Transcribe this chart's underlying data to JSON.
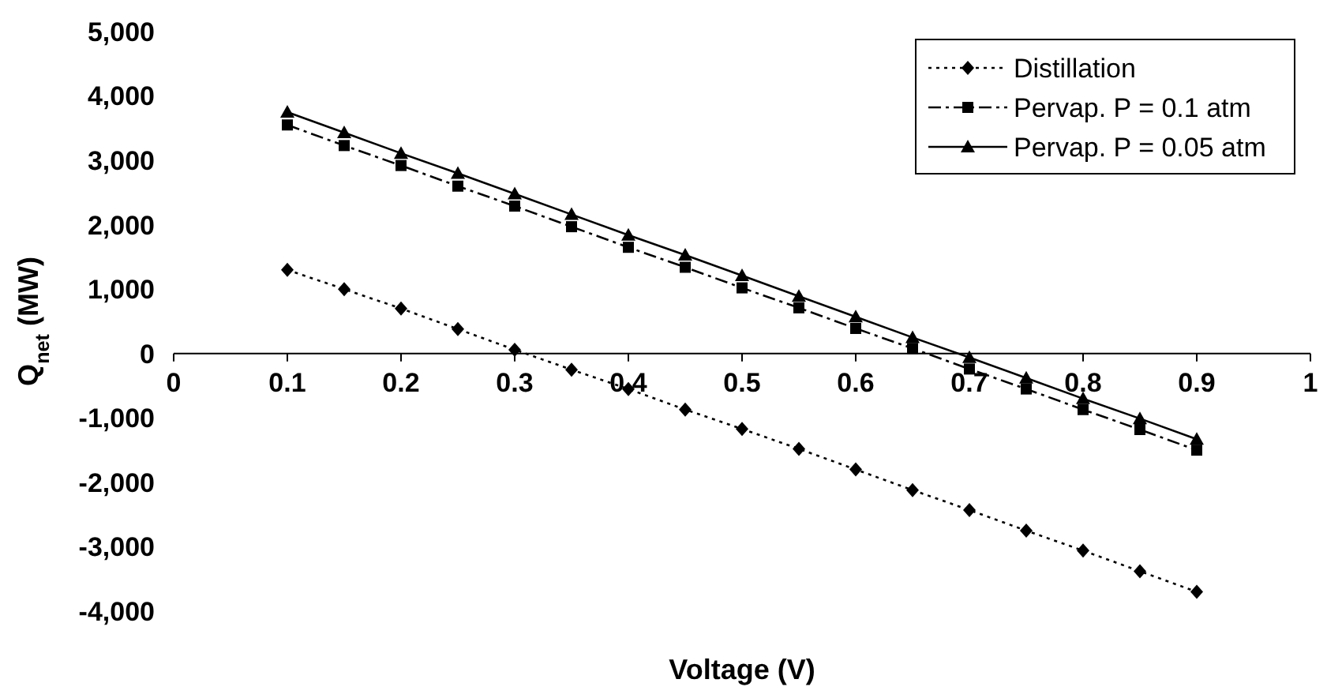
{
  "chart_data": {
    "type": "line",
    "xlabel": "Voltage (V)",
    "ylabel": "Q$_{net}$ (MW)",
    "xlim": [
      0,
      1
    ],
    "xticks": [
      0,
      0.1,
      0.2,
      0.3,
      0.4,
      0.5,
      0.6,
      0.7,
      0.8,
      0.9,
      1
    ],
    "ylim": [
      -4000,
      5000
    ],
    "yticks": [
      {
        "value": -4000,
        "label": "-4,000"
      },
      {
        "value": -3000,
        "label": "-3,000"
      },
      {
        "value": -2000,
        "label": "-2,000"
      },
      {
        "value": -1000,
        "label": "-1,000"
      },
      0,
      {
        "value": 1000,
        "label": "1,000"
      },
      {
        "value": 2000,
        "label": "2,000"
      },
      {
        "value": 3000,
        "label": "3,000"
      },
      {
        "value": 4000,
        "label": "4,000"
      },
      {
        "value": 5000,
        "label": "5,000"
      }
    ],
    "x": [
      0.1,
      0.15,
      0.2,
      0.25,
      0.3,
      0.35,
      0.4,
      0.45,
      0.5,
      0.55,
      0.6,
      0.65,
      0.7,
      0.75,
      0.8,
      0.85,
      0.9
    ],
    "grid": false,
    "legend": "top right",
    "series": [
      {
        "name": "Distillation",
        "color": "#000000",
        "marker": "diamond",
        "line_style": "dotted",
        "values": [
          1300,
          1000,
          700,
          380,
          60,
          -250,
          -550,
          -870,
          -1170,
          -1480,
          -1800,
          -2120,
          -2430,
          -2750,
          -3060,
          -3380,
          -3700
        ]
      },
      {
        "name": "Pervap. P = 0.1 atm",
        "color": "#000000",
        "marker": "square",
        "line_style": "dashed",
        "values": [
          3550,
          3230,
          2920,
          2600,
          2290,
          1970,
          1650,
          1340,
          1020,
          710,
          390,
          80,
          -240,
          -550,
          -870,
          -1180,
          -1500
        ]
      },
      {
        "name": "Pervap. P = 0.05 atm",
        "color": "#000000",
        "marker": "triangle",
        "line_style": "solid",
        "values": [
          3750,
          3430,
          3110,
          2800,
          2480,
          2160,
          1840,
          1530,
          1210,
          890,
          570,
          250,
          -60,
          -380,
          -700,
          -1010,
          -1330
        ]
      }
    ]
  }
}
